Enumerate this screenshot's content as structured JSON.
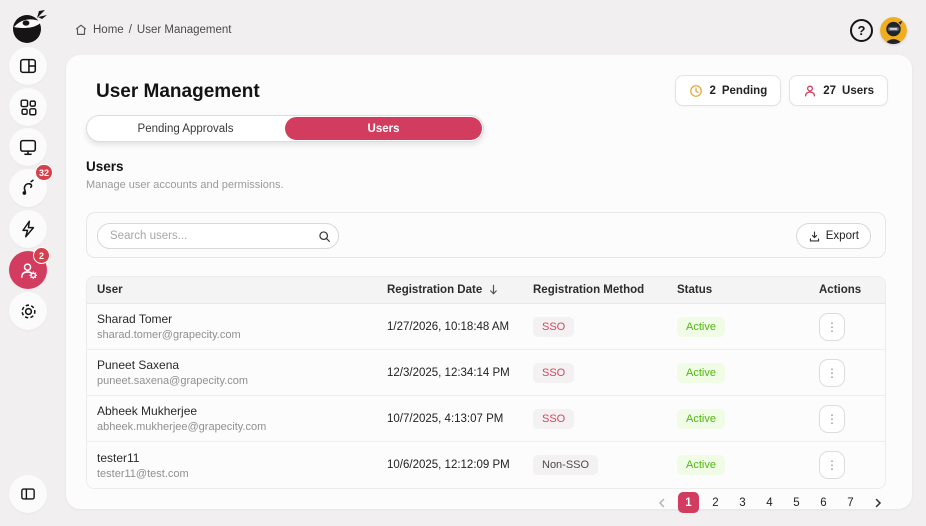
{
  "topbar": {
    "breadcrumb": {
      "home": "Home",
      "separator": "/",
      "current": "User Management"
    },
    "help_label": "?"
  },
  "sidebar": {
    "badges": {
      "integrations": "32",
      "users": "2"
    }
  },
  "header": {
    "title": "User Management",
    "pending_count": "2",
    "pending_label": "Pending",
    "users_count": "27",
    "users_label": "Users"
  },
  "tabs": {
    "pending_label": "Pending Approvals",
    "users_label": "Users"
  },
  "section": {
    "title": "Users",
    "subtitle": "Manage user accounts and permissions."
  },
  "toolbar": {
    "search_placeholder": "Search users...",
    "export_label": "Export"
  },
  "table": {
    "columns": {
      "user": "User",
      "date": "Registration Date",
      "method": "Registration Method",
      "status": "Status",
      "actions": "Actions"
    },
    "rows": [
      {
        "name": "Sharad Tomer",
        "email": "sharad.tomer@grapecity.com",
        "date": "1/27/2026, 10:18:48 AM",
        "method": "SSO",
        "status": "Active"
      },
      {
        "name": "Puneet Saxena",
        "email": "puneet.saxena@grapecity.com",
        "date": "12/3/2025, 12:34:14 PM",
        "method": "SSO",
        "status": "Active"
      },
      {
        "name": "Abheek Mukherjee",
        "email": "abheek.mukherjee@grapecity.com",
        "date": "10/7/2025, 4:13:07 PM",
        "method": "SSO",
        "status": "Active"
      },
      {
        "name": "tester11",
        "email": "tester11@test.com",
        "date": "10/6/2025, 12:12:09 PM",
        "method": "Non-SSO",
        "status": "Active"
      }
    ]
  },
  "pagination": {
    "pages": [
      "1",
      "2",
      "3",
      "4",
      "5",
      "6",
      "7"
    ],
    "active": "1"
  },
  "colors": {
    "accent": "#d23c5f",
    "badge_red": "#d4404b",
    "pending_amber": "#e5a93d",
    "active_green": "#4eb80e",
    "active_green_bg": "#f1fce7"
  }
}
